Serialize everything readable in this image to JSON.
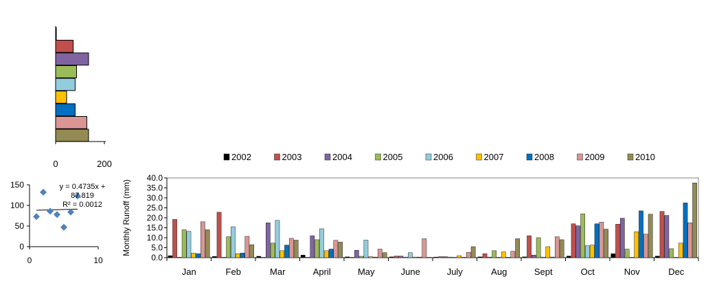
{
  "chart_data": [
    {
      "type": "bar",
      "orientation": "horizontal",
      "series_colors": [
        "#000000",
        "#c0504d",
        "#8064a2",
        "#9bbb59",
        "#93cddd",
        "#ffc000",
        "#0070c0",
        "#d99694",
        "#948a54"
      ],
      "values": [
        2,
        72,
        135,
        86,
        80,
        45,
        80,
        128,
        135
      ],
      "xlim": [
        0,
        200
      ],
      "xticks": [
        "0",
        "200"
      ]
    },
    {
      "type": "scatter",
      "points": [
        [
          1,
          73
        ],
        [
          2,
          132
        ],
        [
          3,
          86
        ],
        [
          4,
          78
        ],
        [
          5,
          47
        ],
        [
          6,
          84
        ],
        [
          7,
          123
        ]
      ],
      "trendline": {
        "slope": 0.4735,
        "intercept": 87.819
      },
      "equation_lines": [
        "y = 0.4735x +",
        "87.819",
        "R² = 0.0012"
      ],
      "xlim": [
        0,
        10
      ],
      "ylim": [
        0,
        150
      ],
      "xticks": [
        "0",
        "10"
      ],
      "yticks": [
        "0",
        "50",
        "100",
        "150"
      ],
      "marker_color": "#4f81bd"
    },
    {
      "type": "bar",
      "ylabel": "Monthly  Runoff (mm)",
      "ylim": [
        0,
        40
      ],
      "yticks": [
        "0.0",
        "5.0",
        "10.0",
        "15.0",
        "20.0",
        "25.0",
        "30.0",
        "35.0",
        "40.0"
      ],
      "categories": [
        "Jan",
        "Feb",
        "Mar",
        "April",
        "May",
        "June",
        "July",
        "Aug",
        "Sept",
        "Oct",
        "Nov",
        "Dec"
      ],
      "legend_position": "top",
      "series": [
        {
          "name": "2002",
          "color": "#000000",
          "values": [
            1.0,
            0.6,
            0.7,
            1.3,
            0.4,
            0.4,
            0.3,
            0.4,
            0.4,
            0.8,
            2.0,
            0.8
          ]
        },
        {
          "name": "2003",
          "color": "#c0504d",
          "values": [
            19.2,
            22.8,
            0.2,
            0.2,
            0.2,
            0.8,
            0.5,
            2.0,
            11.0,
            17.0,
            16.8,
            23.2
          ]
        },
        {
          "name": "2004",
          "color": "#8064a2",
          "values": [
            0.2,
            0.2,
            17.5,
            11.0,
            3.7,
            0.8,
            0.5,
            0.3,
            1.3,
            16.0,
            19.8,
            21.2
          ]
        },
        {
          "name": "2005",
          "color": "#9bbb59",
          "values": [
            14.0,
            10.5,
            7.3,
            9.0,
            0.7,
            0.3,
            0.3,
            3.5,
            10.0,
            22.0,
            4.3,
            4.5
          ]
        },
        {
          "name": "2006",
          "color": "#93cddd",
          "values": [
            13.2,
            15.5,
            18.7,
            14.5,
            8.8,
            2.5,
            0.2,
            0.2,
            0.3,
            6.0,
            0.2,
            0.2
          ]
        },
        {
          "name": "2007",
          "color": "#ffc000",
          "values": [
            2.3,
            2.0,
            3.5,
            3.5,
            0.5,
            0.3,
            1.0,
            2.9,
            5.5,
            6.3,
            13.0,
            7.3
          ]
        },
        {
          "name": "2008",
          "color": "#0070c0",
          "values": [
            2.0,
            2.3,
            6.3,
            4.3,
            0.3,
            0.3,
            0.2,
            0.2,
            0.3,
            17.0,
            23.5,
            27.5
          ]
        },
        {
          "name": "2009",
          "color": "#d99694",
          "values": [
            18.0,
            10.7,
            9.7,
            8.7,
            4.3,
            9.5,
            2.7,
            3.2,
            10.5,
            17.8,
            11.8,
            17.5
          ]
        },
        {
          "name": "2010",
          "color": "#948a54",
          "values": [
            14.0,
            6.5,
            8.8,
            7.8,
            2.5,
            0.2,
            5.5,
            9.5,
            9.0,
            14.3,
            21.8,
            37.5
          ]
        }
      ]
    }
  ]
}
